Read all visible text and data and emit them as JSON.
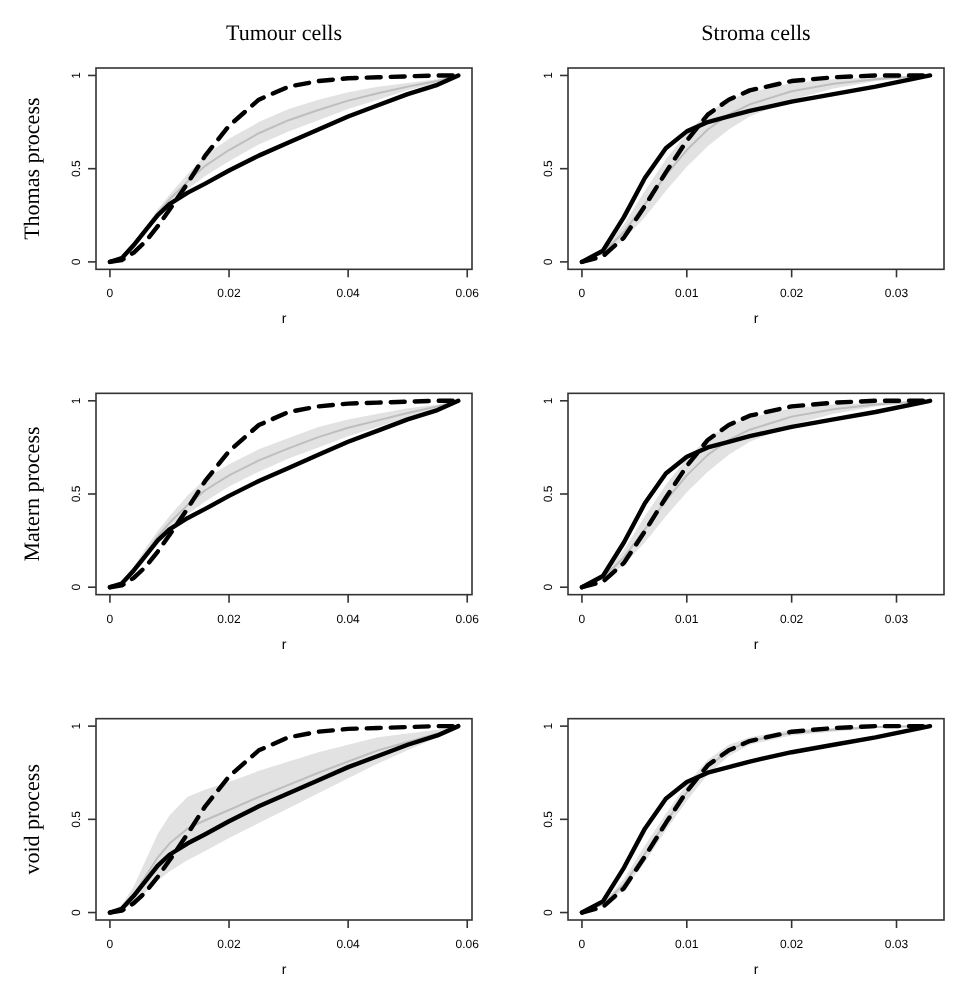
{
  "chart_data": [
    {
      "type": "line",
      "title": "Tumour cells",
      "ylabel": "Thomas process",
      "xlabel": "r",
      "xlim": [
        -0.00234,
        0.0608
      ],
      "xticks": [
        0,
        0.02,
        0.04,
        0.06
      ],
      "ylim": [
        -0.04,
        1.04
      ],
      "yticks": [
        0,
        0.5,
        1
      ],
      "x": [
        0,
        0.002,
        0.004,
        0.006,
        0.008,
        0.01,
        0.013,
        0.016,
        0.02,
        0.025,
        0.03,
        0.035,
        0.04,
        0.045,
        0.05,
        0.055,
        0.0585
      ],
      "series": [
        {
          "color": "#bebebe",
          "line_style": "solid",
          "values": [
            0,
            0.025,
            0.085,
            0.17,
            0.26,
            0.335,
            0.43,
            0.515,
            0.6,
            0.69,
            0.76,
            0.815,
            0.865,
            0.905,
            0.94,
            0.97,
            1
          ],
          "lower": [
            0,
            0.02,
            0.07,
            0.15,
            0.24,
            0.31,
            0.39,
            0.46,
            0.54,
            0.63,
            0.7,
            0.76,
            0.82,
            0.87,
            0.92,
            0.96,
            1
          ],
          "upper": [
            0,
            0.03,
            0.1,
            0.19,
            0.28,
            0.36,
            0.47,
            0.57,
            0.66,
            0.75,
            0.82,
            0.87,
            0.91,
            0.94,
            0.96,
            0.98,
            1
          ]
        },
        {
          "color": "#000000",
          "line_style": "dashed",
          "values": [
            0,
            0.01,
            0.05,
            0.11,
            0.19,
            0.28,
            0.42,
            0.57,
            0.73,
            0.87,
            0.94,
            0.97,
            0.985,
            0.99,
            0.995,
            1,
            1
          ]
        },
        {
          "color": "#000000",
          "line_style": "solid",
          "values": [
            0,
            0.02,
            0.09,
            0.17,
            0.25,
            0.31,
            0.37,
            0.42,
            0.49,
            0.57,
            0.64,
            0.71,
            0.78,
            0.84,
            0.9,
            0.95,
            1
          ]
        }
      ]
    },
    {
      "type": "line",
      "title": "Stroma cells",
      "xlabel": "r",
      "xlim": [
        -0.00133,
        0.03453
      ],
      "xticks": [
        0,
        0.01,
        0.02,
        0.03
      ],
      "ylim": [
        -0.04,
        1.04
      ],
      "yticks": [
        0,
        0.5,
        1
      ],
      "x": [
        0,
        0.002,
        0.004,
        0.006,
        0.008,
        0.01,
        0.012,
        0.014,
        0.016,
        0.02,
        0.024,
        0.028,
        0.0332
      ],
      "series": [
        {
          "color": "#bebebe",
          "line_style": "solid",
          "values": [
            0,
            0.05,
            0.16,
            0.31,
            0.465,
            0.6,
            0.71,
            0.79,
            0.845,
            0.915,
            0.955,
            0.98,
            1
          ],
          "lower": [
            0,
            0.04,
            0.12,
            0.24,
            0.38,
            0.51,
            0.62,
            0.71,
            0.78,
            0.87,
            0.93,
            0.97,
            1
          ],
          "upper": [
            0,
            0.06,
            0.2,
            0.38,
            0.55,
            0.69,
            0.8,
            0.87,
            0.91,
            0.96,
            0.98,
            0.99,
            1
          ]
        },
        {
          "color": "#000000",
          "line_style": "dashed",
          "values": [
            0,
            0.03,
            0.13,
            0.3,
            0.48,
            0.65,
            0.79,
            0.87,
            0.92,
            0.97,
            0.99,
            1,
            1
          ]
        },
        {
          "color": "#000000",
          "line_style": "solid",
          "values": [
            0,
            0.06,
            0.24,
            0.45,
            0.61,
            0.7,
            0.75,
            0.78,
            0.81,
            0.86,
            0.9,
            0.94,
            1
          ]
        }
      ]
    },
    {
      "type": "line",
      "ylabel": "Matern process",
      "xlabel": "r",
      "xlim": [
        -0.00234,
        0.0608
      ],
      "xticks": [
        0,
        0.02,
        0.04,
        0.06
      ],
      "ylim": [
        -0.04,
        1.04
      ],
      "yticks": [
        0,
        0.5,
        1
      ],
      "x": [
        0,
        0.002,
        0.004,
        0.006,
        0.008,
        0.01,
        0.013,
        0.016,
        0.02,
        0.025,
        0.03,
        0.035,
        0.04,
        0.045,
        0.05,
        0.055,
        0.0585
      ],
      "series": [
        {
          "color": "#bebebe",
          "line_style": "solid",
          "values": [
            0,
            0.025,
            0.09,
            0.18,
            0.27,
            0.345,
            0.44,
            0.52,
            0.6,
            0.68,
            0.745,
            0.805,
            0.855,
            0.895,
            0.935,
            0.97,
            1
          ],
          "lower": [
            0,
            0.02,
            0.07,
            0.15,
            0.24,
            0.31,
            0.39,
            0.46,
            0.54,
            0.62,
            0.69,
            0.75,
            0.81,
            0.86,
            0.91,
            0.96,
            1
          ],
          "upper": [
            0,
            0.03,
            0.11,
            0.21,
            0.3,
            0.38,
            0.49,
            0.58,
            0.66,
            0.74,
            0.8,
            0.86,
            0.9,
            0.93,
            0.96,
            0.98,
            1
          ]
        },
        {
          "color": "#000000",
          "line_style": "dashed",
          "values": [
            0,
            0.01,
            0.05,
            0.11,
            0.19,
            0.28,
            0.42,
            0.57,
            0.73,
            0.87,
            0.94,
            0.97,
            0.985,
            0.99,
            0.995,
            1,
            1
          ]
        },
        {
          "color": "#000000",
          "line_style": "solid",
          "values": [
            0,
            0.02,
            0.09,
            0.17,
            0.25,
            0.31,
            0.37,
            0.42,
            0.49,
            0.57,
            0.64,
            0.71,
            0.78,
            0.84,
            0.9,
            0.95,
            1
          ]
        }
      ]
    },
    {
      "type": "line",
      "xlabel": "r",
      "xlim": [
        -0.00133,
        0.03453
      ],
      "xticks": [
        0,
        0.01,
        0.02,
        0.03
      ],
      "ylim": [
        -0.04,
        1.04
      ],
      "yticks": [
        0,
        0.5,
        1
      ],
      "x": [
        0,
        0.002,
        0.004,
        0.006,
        0.008,
        0.01,
        0.012,
        0.014,
        0.016,
        0.02,
        0.024,
        0.028,
        0.0332
      ],
      "series": [
        {
          "color": "#bebebe",
          "line_style": "solid",
          "values": [
            0,
            0.05,
            0.16,
            0.31,
            0.465,
            0.6,
            0.71,
            0.79,
            0.845,
            0.915,
            0.955,
            0.98,
            1
          ],
          "lower": [
            0,
            0.04,
            0.12,
            0.24,
            0.38,
            0.51,
            0.62,
            0.71,
            0.78,
            0.87,
            0.93,
            0.97,
            1
          ],
          "upper": [
            0,
            0.06,
            0.2,
            0.38,
            0.55,
            0.69,
            0.8,
            0.87,
            0.91,
            0.96,
            0.98,
            0.99,
            1
          ]
        },
        {
          "color": "#000000",
          "line_style": "dashed",
          "values": [
            0,
            0.03,
            0.13,
            0.3,
            0.48,
            0.65,
            0.79,
            0.87,
            0.92,
            0.97,
            0.99,
            1,
            1
          ]
        },
        {
          "color": "#000000",
          "line_style": "solid",
          "values": [
            0,
            0.06,
            0.24,
            0.45,
            0.61,
            0.7,
            0.75,
            0.78,
            0.81,
            0.86,
            0.9,
            0.94,
            1
          ]
        }
      ]
    },
    {
      "type": "line",
      "ylabel": "void process",
      "xlabel": "r",
      "xlim": [
        -0.00234,
        0.0608
      ],
      "xticks": [
        0,
        0.02,
        0.04,
        0.06
      ],
      "ylim": [
        -0.04,
        1.04
      ],
      "yticks": [
        0,
        0.5,
        1
      ],
      "x": [
        0,
        0.002,
        0.004,
        0.006,
        0.008,
        0.01,
        0.013,
        0.016,
        0.02,
        0.025,
        0.03,
        0.035,
        0.04,
        0.045,
        0.05,
        0.055,
        0.0585
      ],
      "series": [
        {
          "color": "#bebebe",
          "line_style": "solid",
          "values": [
            0,
            0.025,
            0.095,
            0.195,
            0.295,
            0.37,
            0.45,
            0.495,
            0.55,
            0.62,
            0.685,
            0.75,
            0.81,
            0.87,
            0.915,
            0.96,
            1
          ],
          "lower": [
            0,
            0.01,
            0.05,
            0.11,
            0.17,
            0.22,
            0.28,
            0.33,
            0.4,
            0.48,
            0.56,
            0.64,
            0.72,
            0.8,
            0.87,
            0.94,
            1
          ],
          "upper": [
            0,
            0.04,
            0.14,
            0.28,
            0.42,
            0.52,
            0.62,
            0.66,
            0.7,
            0.76,
            0.81,
            0.86,
            0.9,
            0.94,
            0.96,
            0.98,
            1
          ]
        },
        {
          "color": "#000000",
          "line_style": "dashed",
          "values": [
            0,
            0.01,
            0.05,
            0.11,
            0.19,
            0.28,
            0.42,
            0.57,
            0.73,
            0.87,
            0.94,
            0.97,
            0.985,
            0.99,
            0.995,
            1,
            1
          ]
        },
        {
          "color": "#000000",
          "line_style": "solid",
          "values": [
            0,
            0.02,
            0.09,
            0.17,
            0.25,
            0.31,
            0.37,
            0.42,
            0.49,
            0.57,
            0.64,
            0.71,
            0.78,
            0.84,
            0.9,
            0.95,
            1
          ]
        }
      ]
    },
    {
      "type": "line",
      "xlabel": "r",
      "xlim": [
        -0.00133,
        0.03453
      ],
      "xticks": [
        0,
        0.01,
        0.02,
        0.03
      ],
      "ylim": [
        -0.04,
        1.04
      ],
      "yticks": [
        0,
        0.5,
        1
      ],
      "x": [
        0,
        0.002,
        0.004,
        0.006,
        0.008,
        0.01,
        0.012,
        0.014,
        0.016,
        0.02,
        0.024,
        0.028,
        0.0332
      ],
      "series": [
        {
          "color": "#bebebe",
          "line_style": "solid",
          "values": [
            0,
            0.045,
            0.15,
            0.315,
            0.485,
            0.645,
            0.78,
            0.87,
            0.92,
            0.965,
            0.98,
            0.995,
            1
          ],
          "lower": [
            0,
            0.04,
            0.12,
            0.27,
            0.44,
            0.6,
            0.74,
            0.84,
            0.9,
            0.95,
            0.97,
            0.99,
            1
          ],
          "upper": [
            0,
            0.05,
            0.18,
            0.36,
            0.53,
            0.69,
            0.82,
            0.9,
            0.94,
            0.98,
            0.99,
            1,
            1
          ]
        },
        {
          "color": "#000000",
          "line_style": "dashed",
          "values": [
            0,
            0.03,
            0.13,
            0.3,
            0.48,
            0.65,
            0.79,
            0.87,
            0.92,
            0.97,
            0.99,
            1,
            1
          ]
        },
        {
          "color": "#000000",
          "line_style": "solid",
          "values": [
            0,
            0.06,
            0.24,
            0.45,
            0.61,
            0.7,
            0.75,
            0.78,
            0.81,
            0.86,
            0.9,
            0.94,
            1
          ]
        }
      ]
    }
  ]
}
